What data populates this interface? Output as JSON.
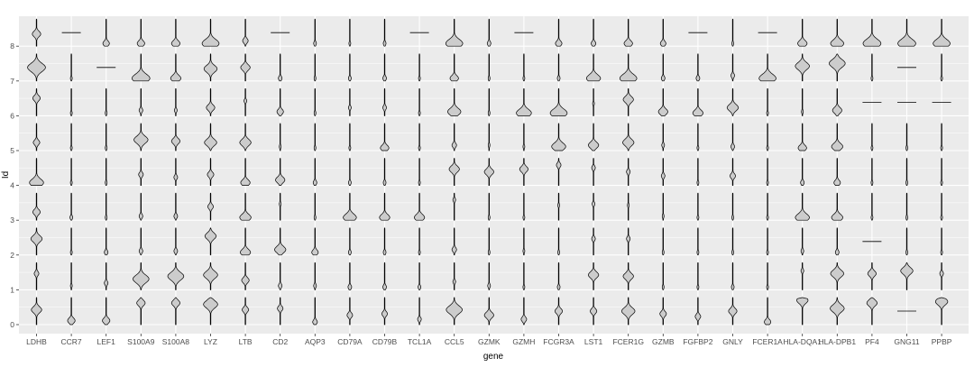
{
  "chart_data": {
    "type": "violin",
    "title": "",
    "xlabel": "gene",
    "ylabel": "Id",
    "grid": true,
    "legend": "none",
    "categories": [
      "LDHB",
      "CCR7",
      "LEF1",
      "S100A9",
      "S100A8",
      "LYZ",
      "LTB",
      "CD2",
      "AQP3",
      "CD79A",
      "CD79B",
      "TCL1A",
      "CCL5",
      "GZMK",
      "GZMH",
      "FCGR3A",
      "LST1",
      "FCER1G",
      "GZMB",
      "FGFBP2",
      "GNLY",
      "FCER1A",
      "HLA-DQA1",
      "HLA-DPB1",
      "PF4",
      "GNG11",
      "PPBP"
    ],
    "y_ticks": [
      "0",
      "1",
      "2",
      "3",
      "4",
      "5",
      "6",
      "7",
      "8"
    ],
    "fill_color": "#cccccc",
    "stroke_color": "#000000",
    "panel_color": "#ebebeb",
    "grid_color": "#ffffff",
    "expression_peak": [
      [
        0.55,
        0.15,
        0.15,
        0.8,
        0.8,
        0.75,
        0.55,
        0.6,
        0.1,
        0.35,
        0.4,
        0.2,
        0.55,
        0.35,
        0.2,
        0.5,
        0.5,
        0.5,
        0.4,
        0.3,
        0.5,
        0.1,
        0.9,
        0.6,
        0.8,
        0.9,
        0.85
      ],
      [
        0.6,
        0.15,
        0.25,
        0.4,
        0.5,
        0.55,
        0.35,
        0.15,
        0.15,
        0.1,
        0.1,
        0.1,
        0.3,
        0.15,
        0.1,
        0.1,
        0.55,
        0.5,
        0.1,
        0.1,
        0.1,
        0.1,
        0.7,
        0.6,
        0.6,
        0.7,
        0.6
      ],
      [
        0.6,
        0.1,
        0.1,
        0.15,
        0.15,
        0.7,
        0.1,
        0.2,
        0.1,
        0.1,
        0.1,
        0.1,
        0.2,
        0.1,
        0.15,
        0.1,
        0.6,
        0.6,
        0.1,
        0.1,
        0.1,
        0.1,
        0.15,
        0.1,
        0.1,
        0.1,
        0.1
      ],
      [
        0.3,
        0.1,
        0.1,
        0.15,
        0.15,
        0.5,
        0.1,
        0.6,
        0.1,
        0.1,
        0.1,
        0.1,
        0.75,
        0.1,
        0.1,
        0.55,
        0.6,
        0.55,
        0.15,
        0.1,
        0.1,
        0.1,
        0.1,
        0.1,
        0.1,
        0.1,
        0.1
      ],
      [
        0.1,
        0.1,
        0.1,
        0.4,
        0.3,
        0.4,
        0.1,
        0.2,
        0.1,
        0.1,
        0.1,
        0.1,
        0.6,
        0.5,
        0.6,
        0.75,
        0.65,
        0.5,
        0.35,
        0.1,
        0.35,
        0.1,
        0.1,
        0.1,
        0.1,
        0.1,
        0.1
      ],
      [
        0.3,
        0.1,
        0.1,
        0.4,
        0.35,
        0.3,
        0.3,
        0.15,
        0.1,
        0.1,
        0.1,
        0.1,
        0.2,
        0.2,
        0.15,
        0.15,
        0.2,
        0.3,
        0.2,
        0.1,
        0.15,
        0.1,
        0.1,
        0.15,
        0.1,
        0.1,
        0.1
      ],
      [
        0.65,
        0.1,
        0.1,
        0.2,
        0.2,
        0.3,
        0.55,
        0.15,
        0.1,
        0.3,
        0.3,
        0.1,
        0.15,
        0.1,
        0.1,
        0.1,
        0.45,
        0.6,
        0.15,
        0.1,
        0.3,
        0.1,
        0.15,
        0.2,
        0.1,
        0.1,
        0.1
      ],
      [
        0.5,
        0.1,
        0.2,
        0.1,
        0.1,
        0.45,
        0.5,
        0.1,
        0.1,
        0.1,
        0.1,
        0.1,
        0.1,
        0.1,
        0.1,
        0.1,
        0.1,
        0.1,
        0.1,
        0.1,
        0.2,
        0.1,
        0.55,
        0.65,
        0.1,
        0.1,
        0.1
      ],
      [
        0.45,
        0.1,
        0.1,
        0.1,
        0.1,
        0.1,
        0.2,
        0.1,
        0.1,
        0.1,
        0.1,
        0.1,
        0.1,
        0.1,
        0.1,
        0.1,
        0.1,
        0.1,
        0.1,
        0.1,
        0.1,
        0.1,
        0.1,
        0.1,
        0.1,
        0.1,
        0.1
      ]
    ],
    "peak_width": [
      [
        0.55,
        0.4,
        0.4,
        0.45,
        0.45,
        0.75,
        0.35,
        0.3,
        0.25,
        0.3,
        0.3,
        0.2,
        0.85,
        0.5,
        0.3,
        0.4,
        0.35,
        0.7,
        0.35,
        0.3,
        0.45,
        0.35,
        0.6,
        0.75,
        0.55,
        0.8,
        0.65
      ],
      [
        0.25,
        0.1,
        0.2,
        0.85,
        0.85,
        0.75,
        0.4,
        0.2,
        0.15,
        0.2,
        0.2,
        0.15,
        0.15,
        0.15,
        0.1,
        0.15,
        0.55,
        0.55,
        0.1,
        0.1,
        0.15,
        0.1,
        0.15,
        0.7,
        0.45,
        0.65,
        0.2
      ],
      [
        0.6,
        0.1,
        0.2,
        0.2,
        0.2,
        0.6,
        0.55,
        0.6,
        0.35,
        0.15,
        0.15,
        0.1,
        0.25,
        0.1,
        0.1,
        0.1,
        0.2,
        0.2,
        0.1,
        0.1,
        0.1,
        0.1,
        0.15,
        0.2,
        0.1,
        0.1,
        0.1
      ],
      [
        0.4,
        0.15,
        0.1,
        0.2,
        0.2,
        0.3,
        0.6,
        0.1,
        0.1,
        0.7,
        0.55,
        0.55,
        0.15,
        0.1,
        0.1,
        0.1,
        0.15,
        0.1,
        0.1,
        0.1,
        0.1,
        0.1,
        0.75,
        0.6,
        0.1,
        0.1,
        0.1
      ],
      [
        0.75,
        0.1,
        0.1,
        0.25,
        0.2,
        0.35,
        0.5,
        0.5,
        0.2,
        0.15,
        0.15,
        0.1,
        0.55,
        0.5,
        0.45,
        0.25,
        0.2,
        0.2,
        0.2,
        0.1,
        0.3,
        0.1,
        0.2,
        0.35,
        0.1,
        0.1,
        0.1
      ],
      [
        0.35,
        0.1,
        0.1,
        0.75,
        0.45,
        0.65,
        0.6,
        0.1,
        0.1,
        0.1,
        0.45,
        0.1,
        0.25,
        0.1,
        0.1,
        0.75,
        0.55,
        0.6,
        0.15,
        0.1,
        0.2,
        0.1,
        0.45,
        0.6,
        0.1,
        0.1,
        0.1
      ],
      [
        0.4,
        0.1,
        0.1,
        0.2,
        0.15,
        0.45,
        0.15,
        0.35,
        0.1,
        0.15,
        0.2,
        0.1,
        0.7,
        0.1,
        0.8,
        0.9,
        0.1,
        0.55,
        0.5,
        0.55,
        0.6,
        0.1,
        0.1,
        0.5,
        0.1,
        0.1,
        0.1
      ],
      [
        0.95,
        0.1,
        0.1,
        0.95,
        0.55,
        0.7,
        0.5,
        0.2,
        0.1,
        0.15,
        0.2,
        0.1,
        0.45,
        0.1,
        0.1,
        0.15,
        0.75,
        0.9,
        0.2,
        0.2,
        0.2,
        0.9,
        0.75,
        0.85,
        0.1,
        0.1,
        0.1
      ],
      [
        0.45,
        0.1,
        0.35,
        0.4,
        0.45,
        0.9,
        0.3,
        0.1,
        0.15,
        0.1,
        0.15,
        0.1,
        0.9,
        0.2,
        0.1,
        0.35,
        0.25,
        0.45,
        0.3,
        0.1,
        0.1,
        0.1,
        0.5,
        0.7,
        0.95,
        0.95,
        0.9
      ]
    ],
    "flat_line_cells": [
      {
        "gene": "CCR7",
        "id": 8
      },
      {
        "gene": "CD2",
        "id": 8
      },
      {
        "gene": "TCL1A",
        "id": 8
      },
      {
        "gene": "GZMH",
        "id": 8
      },
      {
        "gene": "FGFBP2",
        "id": 8
      },
      {
        "gene": "FCER1A",
        "id": 8
      },
      {
        "gene": "LEF1",
        "id": 7
      },
      {
        "gene": "GNG11",
        "id": 7
      },
      {
        "gene": "PF4",
        "id": 6
      },
      {
        "gene": "GNG11",
        "id": 6
      },
      {
        "gene": "PPBP",
        "id": 6
      },
      {
        "gene": "PF4",
        "id": 2
      },
      {
        "gene": "GNG11",
        "id": 0
      }
    ]
  }
}
